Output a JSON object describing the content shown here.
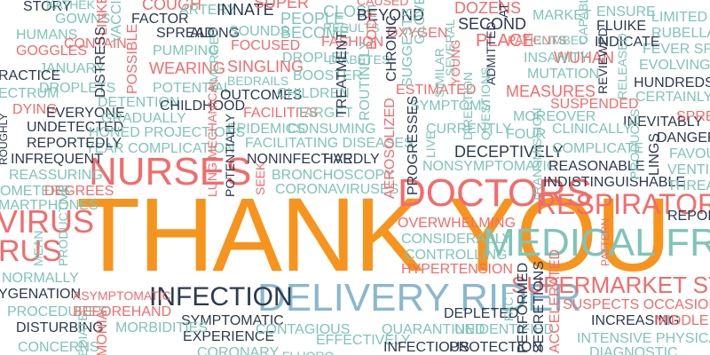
{
  "palette": {
    "orange": "#f7941d",
    "salmon": "#f26c6c",
    "teal": "#7fc4b8",
    "blue": "#8ab8cc",
    "navy": "#2b3a4f"
  },
  "words": [
    {
      "text": "THANK YOU",
      "color": "orange"
    },
    {
      "text": "NURSES",
      "color": "salmon"
    },
    {
      "text": "DOCTORS",
      "color": "salmon"
    },
    {
      "text": "RESPIRATORY",
      "color": "salmon"
    },
    {
      "text": "MEDICAL FRONT",
      "color": "teal"
    },
    {
      "text": "DELIVERY RIDER",
      "color": "blue"
    },
    {
      "text": "SUPERMARKET STAFF",
      "color": "salmon"
    },
    {
      "text": "INFECTION",
      "color": "navy"
    },
    {
      "text": "VIRUS",
      "color": "salmon"
    },
    {
      "text": "RUS",
      "color": "salmon"
    },
    {
      "text": "STORY",
      "color": "navy"
    },
    {
      "text": "KATHEK",
      "color": "teal"
    },
    {
      "text": "GOWNS",
      "color": "teal"
    },
    {
      "text": "LINKED",
      "color": "salmon"
    },
    {
      "text": "COUGH",
      "color": "salmon"
    },
    {
      "text": "FACTOR",
      "color": "navy"
    },
    {
      "text": "ARTERY",
      "color": "teal"
    },
    {
      "text": "INNATE",
      "color": "navy"
    },
    {
      "text": "SUPER",
      "color": "salmon"
    },
    {
      "text": "PEOPLE",
      "color": "teal"
    },
    {
      "text": "BECOME",
      "color": "teal"
    },
    {
      "text": "CLOSE",
      "color": "teal"
    },
    {
      "text": "BEYOND",
      "color": "navy"
    },
    {
      "text": "CAUSED",
      "color": "salmon"
    },
    {
      "text": "DOZENS",
      "color": "salmon"
    },
    {
      "text": "SECOND",
      "color": "navy"
    },
    {
      "text": "PLACE",
      "color": "salmon"
    },
    {
      "text": "PATIENTS",
      "color": "salmon"
    },
    {
      "text": "MARKET",
      "color": "teal"
    },
    {
      "text": "ENSURE",
      "color": "teal"
    },
    {
      "text": "FLUIKE",
      "color": "navy"
    },
    {
      "text": "LIMITED",
      "color": "teal"
    },
    {
      "text": "RUBELLA",
      "color": "teal"
    },
    {
      "text": "FEVER SPASE",
      "color": "teal"
    },
    {
      "text": "EVOLVING",
      "color": "teal"
    },
    {
      "text": "HUNDREDS",
      "color": "navy"
    },
    {
      "text": "CERTAINLY",
      "color": "teal"
    },
    {
      "text": "SUSPENDED",
      "color": "salmon"
    },
    {
      "text": "INEVITABLY",
      "color": "navy"
    },
    {
      "text": "SPREAD",
      "color": "salmon"
    },
    {
      "text": "DANGEROU",
      "color": "navy"
    },
    {
      "text": "HUMANS",
      "color": "teal"
    },
    {
      "text": "GOGGLES",
      "color": "salmon"
    },
    {
      "text": "CONTAIN",
      "color": "salmon"
    },
    {
      "text": "JANUARY",
      "color": "teal"
    },
    {
      "text": "DROPLETS",
      "color": "teal"
    },
    {
      "text": "RACTICE",
      "color": "navy"
    },
    {
      "text": "ECTRUM",
      "color": "teal"
    },
    {
      "text": "VACCINE",
      "color": "teal"
    },
    {
      "text": "SPREAD",
      "color": "navy"
    },
    {
      "text": "ALONG",
      "color": "navy"
    },
    {
      "text": "PUMPING",
      "color": "teal"
    },
    {
      "text": "WEARING",
      "color": "salmon"
    },
    {
      "text": "POTENTIAL",
      "color": "teal"
    },
    {
      "text": "SOUNDS",
      "color": "teal"
    },
    {
      "text": "FOCUSED",
      "color": "salmon"
    },
    {
      "text": "SINGLING",
      "color": "salmon"
    },
    {
      "text": "BEDRAILS",
      "color": "teal"
    },
    {
      "text": "OUTCOMES",
      "color": "navy"
    },
    {
      "text": "DROPLET",
      "color": "teal"
    },
    {
      "text": "BOOSTER",
      "color": "teal"
    },
    {
      "text": "CHILDREN",
      "color": "teal"
    },
    {
      "text": "RESULTS",
      "color": "teal"
    },
    {
      "text": "FASHION",
      "color": "salmon"
    },
    {
      "text": "DIABETES",
      "color": "teal"
    },
    {
      "text": "BODY",
      "color": "salmon"
    },
    {
      "text": "OXYGEN",
      "color": "salmon"
    },
    {
      "text": "GLOVE",
      "color": "teal"
    },
    {
      "text": "SEVERAL",
      "color": "teal"
    },
    {
      "text": "ESTIMATED",
      "color": "salmon"
    },
    {
      "text": "WUHAN",
      "color": "salmon"
    },
    {
      "text": "CLIMBED",
      "color": "teal"
    },
    {
      "text": "INDICATE",
      "color": "navy"
    },
    {
      "text": "INSANITY",
      "color": "teal"
    },
    {
      "text": "MUTATION",
      "color": "teal"
    },
    {
      "text": "MEASURES",
      "color": "salmon"
    },
    {
      "text": "DYING",
      "color": "salmon"
    },
    {
      "text": "EVERYONE",
      "color": "navy"
    },
    {
      "text": "UNDETECTED",
      "color": "navy"
    },
    {
      "text": "DETENTION",
      "color": "teal"
    },
    {
      "text": "GRADUALLY",
      "color": "teal"
    },
    {
      "text": "CHILDHOOD",
      "color": "navy"
    },
    {
      "text": "HONED PROJECTIONS",
      "color": "teal"
    },
    {
      "text": "YEAR COMPLICATION",
      "color": "teal"
    },
    {
      "text": "REPORTEDLY",
      "color": "navy"
    },
    {
      "text": "INFREQUENT",
      "color": "navy"
    },
    {
      "text": "REASSURING",
      "color": "teal"
    },
    {
      "text": "FACILITIES",
      "color": "salmon"
    },
    {
      "text": "TARGET",
      "color": "teal"
    },
    {
      "text": "EPIDEMICS",
      "color": "teal"
    },
    {
      "text": "CONSUMING",
      "color": "teal"
    },
    {
      "text": "FACILITATING DISEASES",
      "color": "teal"
    },
    {
      "text": "NONINFECTIVE",
      "color": "navy"
    },
    {
      "text": "HARDLY",
      "color": "navy"
    },
    {
      "text": "BRONCHOSCOPY",
      "color": "teal"
    },
    {
      "text": "CORONAVIRUSES",
      "color": "teal"
    },
    {
      "text": "TREATMENT",
      "color": "navy"
    },
    {
      "text": "ROUTINELY",
      "color": "teal"
    },
    {
      "text": "SYMPTOMS",
      "color": "teal"
    },
    {
      "text": "CURRENTLY",
      "color": "teal"
    },
    {
      "text": "DECEPTIVELY",
      "color": "navy"
    },
    {
      "text": "NONSYMPTOMATIC",
      "color": "teal"
    },
    {
      "text": "MOREOVER",
      "color": "teal"
    },
    {
      "text": "CLINICALLY",
      "color": "teal"
    },
    {
      "text": "FOUR",
      "color": "teal"
    },
    {
      "text": "COMPLICATE",
      "color": "teal"
    },
    {
      "text": "REASONABLE",
      "color": "navy"
    },
    {
      "text": "INDISTINGUISHABLE",
      "color": "navy"
    },
    {
      "text": "FAVOURE",
      "color": "teal"
    },
    {
      "text": "VENTILATE",
      "color": "teal"
    },
    {
      "text": "THREATEN",
      "color": "teal"
    },
    {
      "text": "REPORTE",
      "color": "navy"
    },
    {
      "text": "OMETERS",
      "color": "teal"
    },
    {
      "text": "DEGREES",
      "color": "salmon"
    },
    {
      "text": "MARTPHONES",
      "color": "teal"
    },
    {
      "text": "MEAN",
      "color": "teal"
    },
    {
      "text": "NORMALLY",
      "color": "teal"
    },
    {
      "text": "YGENATION",
      "color": "navy"
    },
    {
      "text": "PROCEDURES",
      "color": "teal"
    },
    {
      "text": "DISTURBING",
      "color": "navy"
    },
    {
      "text": "CONCERNS",
      "color": "teal"
    },
    {
      "text": "ASYMPTOMATIC",
      "color": "salmon"
    },
    {
      "text": "BEFOREHAND",
      "color": "salmon"
    },
    {
      "text": "SYMPTOMATIC",
      "color": "navy"
    },
    {
      "text": "EXPERIENCE",
      "color": "navy"
    },
    {
      "text": "MORBIDITIES",
      "color": "teal"
    },
    {
      "text": "CONTAGIOUS",
      "color": "teal"
    },
    {
      "text": "CORONARY",
      "color": "teal"
    },
    {
      "text": "OVERWHELMING",
      "color": "salmon"
    },
    {
      "text": "CONSIDERABLY",
      "color": "teal"
    },
    {
      "text": "CONTROLLING",
      "color": "teal"
    },
    {
      "text": "HYPERTENSION",
      "color": "salmon"
    },
    {
      "text": "DEPLETED",
      "color": "navy"
    },
    {
      "text": "QUARANTINED",
      "color": "teal"
    },
    {
      "text": "UNIDENTIFIED",
      "color": "teal"
    },
    {
      "text": "EFFECTIVELY",
      "color": "teal"
    },
    {
      "text": "INFECTIOUS",
      "color": "navy"
    },
    {
      "text": "PROTECTION",
      "color": "navy"
    },
    {
      "text": "SUSPECTS OCCASIONAL",
      "color": "salmon"
    },
    {
      "text": "INCREASING",
      "color": "navy"
    },
    {
      "text": "MIDDLE",
      "color": "salmon"
    },
    {
      "text": "INTENSIVE PHYSICALLY",
      "color": "teal"
    },
    {
      "text": "DIAGNOSTIC",
      "color": "teal"
    },
    {
      "text": "POSSIBLE",
      "color": "salmon"
    },
    {
      "text": "DISTRESS",
      "color": "navy"
    },
    {
      "text": "EMERGED",
      "color": "teal"
    },
    {
      "text": "LUNG MECHANICAL",
      "color": "salmon"
    },
    {
      "text": "POTENTIALLY",
      "color": "navy"
    },
    {
      "text": "SEEK",
      "color": "salmon"
    },
    {
      "text": "AEROSOLIZED",
      "color": "salmon"
    },
    {
      "text": "PROGRESSES",
      "color": "navy"
    },
    {
      "text": "LIVE",
      "color": "teal"
    },
    {
      "text": "DIRECTION",
      "color": "teal"
    },
    {
      "text": "QUESTIONS",
      "color": "teal"
    },
    {
      "text": "ADMITTED",
      "color": "navy"
    },
    {
      "text": "TRANSMISSION",
      "color": "teal"
    },
    {
      "text": "PRODUCES",
      "color": "teal"
    },
    {
      "text": "LINGS",
      "color": "navy"
    },
    {
      "text": "PATTERN",
      "color": "salmon"
    },
    {
      "text": "REVIEWED",
      "color": "navy"
    },
    {
      "text": "RELEASED",
      "color": "teal"
    },
    {
      "text": "CAPABLE",
      "color": "teal"
    },
    {
      "text": "PERFORMED",
      "color": "navy"
    },
    {
      "text": "SECRETIONS",
      "color": "navy"
    },
    {
      "text": "ACCELERATED",
      "color": "salmon"
    },
    {
      "text": "FACT",
      "color": "teal"
    },
    {
      "text": "PRODUCTIVE",
      "color": "teal"
    },
    {
      "text": "MONIA",
      "color": "salmon"
    },
    {
      "text": "EDIATE",
      "color": "teal"
    },
    {
      "text": "ROUGHLY",
      "color": "navy"
    },
    {
      "text": "CHRONIC",
      "color": "navy"
    },
    {
      "text": "SUGGESTS",
      "color": "teal"
    },
    {
      "text": "SIMILAR",
      "color": "teal"
    },
    {
      "text": "YOUNG",
      "color": "salmon"
    },
    {
      "text": "ATTEMPTING",
      "color": "navy"
    },
    {
      "text": "FLUORO",
      "color": "teal"
    }
  ]
}
